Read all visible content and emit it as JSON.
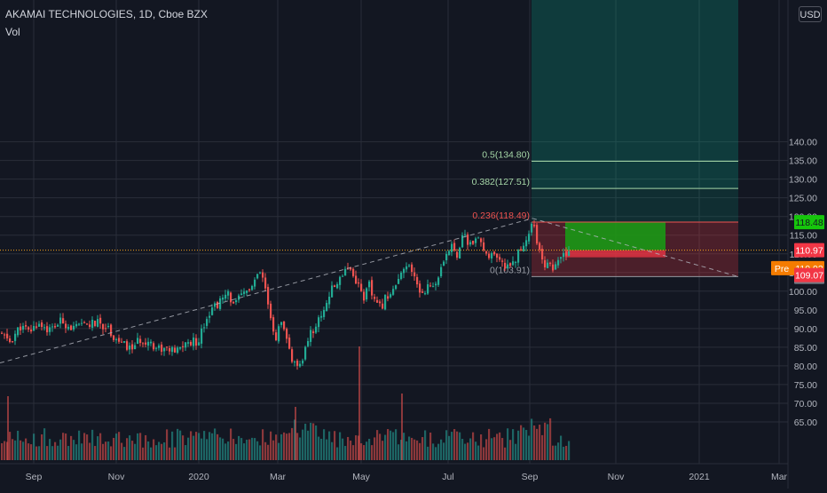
{
  "header": {
    "title": "AKAMAI TECHNOLOGIES, 1D, Cboe BZX",
    "volume_label": "Vol",
    "currency_button": "USD"
  },
  "colors": {
    "background": "#131722",
    "grid": "#2a2e39",
    "up": "#26a69a",
    "up_bright": "#22ab94",
    "down": "#ef5350",
    "fib_line": "#a5d6a7",
    "fib_zero": "#9598a1",
    "fib_236": "#ef5350",
    "price_label_green": "#16c60c",
    "price_label_red": "#f23645",
    "price_label_gray": "#787b86",
    "pre_label": "#f57c00",
    "dotted_price": "#f7a21b",
    "target_zone": "#089981",
    "stop_zone": "#f23645",
    "trendline": "#b2b5be"
  },
  "chart_data": {
    "type": "candlestick",
    "x_axis": {
      "tick_labels": [
        "Sep",
        "Nov",
        "2020",
        "Mar",
        "May",
        "Jul",
        "Sep",
        "Nov",
        "2021",
        "Mar"
      ]
    },
    "y_axis": {
      "tick_labels": [
        "65.00",
        "70.00",
        "75.00",
        "80.00",
        "85.00",
        "90.00",
        "95.00",
        "100.00",
        "105.00",
        "110.00",
        "115.00",
        "120.00",
        "125.00",
        "130.00",
        "135.00",
        "140.00"
      ],
      "range": [
        64.5,
        140.5
      ]
    },
    "grid": true,
    "fib_levels": [
      {
        "label": "0.5(134.80)",
        "value": 134.8
      },
      {
        "label": "0.382(127.51)",
        "value": 127.51
      },
      {
        "label": "0.236(118.49)",
        "value": 118.49
      },
      {
        "label": "0(103.91)",
        "value": 103.91
      }
    ],
    "price_labels": [
      {
        "text": "118.48",
        "value": 118.48,
        "kind": "green"
      },
      {
        "text": "110.97",
        "value": 110.97,
        "kind": "red"
      },
      {
        "text": "110.93",
        "value": 110.93,
        "kind": "pre",
        "prefix": "Pre"
      },
      {
        "text": "110.73",
        "value": 110.73,
        "kind": "gray"
      },
      {
        "text": "109.07",
        "value": 109.07,
        "kind": "red"
      }
    ],
    "position": {
      "entry": 110.97,
      "target": 118.48,
      "stop": 103.91,
      "avg_loss_band": 109.07
    },
    "price_path": [
      [
        0,
        88.5
      ],
      [
        10,
        86.5
      ],
      [
        22,
        90.5
      ],
      [
        32,
        89
      ],
      [
        42,
        91.5
      ],
      [
        55,
        89.5
      ],
      [
        68,
        92
      ],
      [
        82,
        90
      ],
      [
        95,
        91
      ],
      [
        108,
        91.5
      ],
      [
        120,
        90.5
      ],
      [
        128,
        87.5
      ],
      [
        136,
        86
      ],
      [
        145,
        84.5
      ],
      [
        155,
        86.5
      ],
      [
        165,
        87
      ],
      [
        175,
        85
      ],
      [
        187,
        84.5
      ],
      [
        197,
        83.5
      ],
      [
        205,
        85.5
      ],
      [
        215,
        86.5
      ],
      [
        222,
        86.5
      ],
      [
        228,
        91
      ],
      [
        236,
        95
      ],
      [
        246,
        97
      ],
      [
        256,
        99
      ],
      [
        264,
        96.5
      ],
      [
        274,
        99.5
      ],
      [
        284,
        101.5
      ],
      [
        292,
        105
      ],
      [
        298,
        100.5
      ],
      [
        303,
        93
      ],
      [
        309,
        87
      ],
      [
        315,
        91.5
      ],
      [
        323,
        86
      ],
      [
        329,
        81
      ],
      [
        336,
        78.5
      ],
      [
        342,
        84
      ],
      [
        348,
        88.5
      ],
      [
        356,
        91
      ],
      [
        364,
        95.5
      ],
      [
        372,
        100
      ],
      [
        381,
        103
      ],
      [
        389,
        107
      ],
      [
        395,
        105.5
      ],
      [
        402,
        102
      ],
      [
        409,
        98.5
      ],
      [
        415,
        101.5
      ],
      [
        421,
        97
      ],
      [
        428,
        95.5
      ],
      [
        435,
        99
      ],
      [
        443,
        100.5
      ],
      [
        451,
        104
      ],
      [
        458,
        107
      ],
      [
        466,
        103.5
      ],
      [
        473,
        99.5
      ],
      [
        480,
        101
      ],
      [
        488,
        101.5
      ],
      [
        496,
        105.5
      ],
      [
        502,
        109
      ],
      [
        508,
        113
      ],
      [
        514,
        110
      ],
      [
        520,
        115
      ],
      [
        528,
        112.5
      ],
      [
        536,
        114
      ],
      [
        544,
        111
      ],
      [
        552,
        109.5
      ],
      [
        560,
        108
      ],
      [
        567,
        106.5
      ],
      [
        574,
        107.5
      ],
      [
        582,
        109.5
      ],
      [
        590,
        113
      ],
      [
        597,
        117
      ],
      [
        600,
        119.5
      ],
      [
        605,
        112
      ],
      [
        611,
        106.5
      ],
      [
        617,
        108.5
      ],
      [
        623,
        105.5
      ],
      [
        629,
        108
      ],
      [
        635,
        110
      ],
      [
        641,
        111
      ]
    ]
  }
}
